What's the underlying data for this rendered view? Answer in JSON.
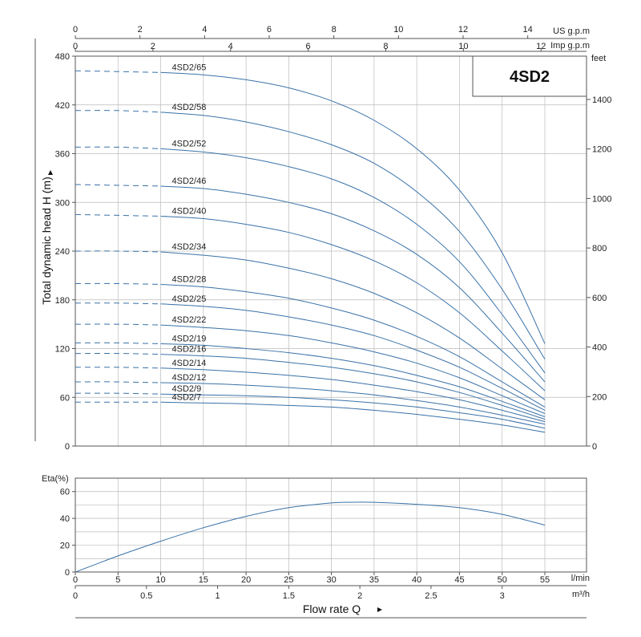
{
  "chart_data": [
    {
      "type": "line",
      "title": "4SD2",
      "ylabel": "Total dynamic head H (m)",
      "ylim": [
        0,
        480
      ],
      "y_ticks": [
        0,
        60,
        120,
        180,
        240,
        300,
        360,
        420,
        480
      ],
      "xlim": [
        0,
        55
      ],
      "secondary_y": {
        "unit": "feet",
        "ticks": [
          0,
          200,
          400,
          600,
          800,
          1000,
          1200,
          1400
        ]
      },
      "top_axis_us": {
        "unit": "US g.p.m",
        "ticks": [
          0,
          2,
          4,
          6,
          8,
          10,
          12,
          14
        ]
      },
      "top_axis_imp": {
        "unit": "Imp g.p.m",
        "ticks": [
          0,
          2,
          4,
          6,
          8,
          10,
          12
        ]
      },
      "grid": true,
      "series": [
        {
          "name": "4SD2/65",
          "dashed_until": 10,
          "points": [
            [
              0,
              462
            ],
            [
              5,
              461
            ],
            [
              10,
              460
            ],
            [
              15,
              457
            ],
            [
              20,
              451
            ],
            [
              25,
              441
            ],
            [
              30,
              425
            ],
            [
              35,
              401
            ],
            [
              40,
              366
            ],
            [
              45,
              315
            ],
            [
              50,
              238
            ],
            [
              55,
              126
            ]
          ]
        },
        {
          "name": "4SD2/58",
          "dashed_until": 10,
          "points": [
            [
              0,
              413
            ],
            [
              5,
              413
            ],
            [
              10,
              411
            ],
            [
              15,
              407
            ],
            [
              20,
              399
            ],
            [
              25,
              387
            ],
            [
              30,
              371
            ],
            [
              35,
              348
            ],
            [
              40,
              313
            ],
            [
              45,
              264
            ],
            [
              50,
              193
            ],
            [
              55,
              107
            ]
          ]
        },
        {
          "name": "4SD2/52",
          "dashed_until": 10,
          "points": [
            [
              0,
              368
            ],
            [
              5,
              368
            ],
            [
              10,
              366
            ],
            [
              15,
              362
            ],
            [
              20,
              355
            ],
            [
              25,
              344
            ],
            [
              30,
              329
            ],
            [
              35,
              306
            ],
            [
              40,
              273
            ],
            [
              45,
              227
            ],
            [
              50,
              162
            ],
            [
              55,
              90
            ]
          ]
        },
        {
          "name": "4SD2/46",
          "dashed_until": 10,
          "points": [
            [
              0,
              322
            ],
            [
              5,
              321
            ],
            [
              10,
              320
            ],
            [
              15,
              317
            ],
            [
              20,
              310
            ],
            [
              25,
              300
            ],
            [
              30,
              286
            ],
            [
              35,
              265
            ],
            [
              40,
              236
            ],
            [
              45,
              195
            ],
            [
              50,
              139
            ],
            [
              55,
              79
            ]
          ]
        },
        {
          "name": "4SD2/40",
          "dashed_until": 10,
          "points": [
            [
              0,
              285
            ],
            [
              5,
              284
            ],
            [
              10,
              283
            ],
            [
              15,
              280
            ],
            [
              20,
              273
            ],
            [
              25,
              263
            ],
            [
              30,
              248
            ],
            [
              35,
              228
            ],
            [
              40,
              201
            ],
            [
              45,
              164
            ],
            [
              50,
              117
            ],
            [
              55,
              68
            ]
          ]
        },
        {
          "name": "4SD2/34",
          "dashed_until": 10,
          "points": [
            [
              0,
              240
            ],
            [
              5,
              240
            ],
            [
              10,
              239
            ],
            [
              15,
              235
            ],
            [
              20,
              229
            ],
            [
              25,
              219
            ],
            [
              30,
              206
            ],
            [
              35,
              188
            ],
            [
              40,
              164
            ],
            [
              45,
              133
            ],
            [
              50,
              95
            ],
            [
              55,
              57
            ]
          ]
        },
        {
          "name": "4SD2/28",
          "dashed_until": 10,
          "points": [
            [
              0,
              200
            ],
            [
              5,
              200
            ],
            [
              10,
              199
            ],
            [
              15,
              196
            ],
            [
              20,
              190
            ],
            [
              25,
              182
            ],
            [
              30,
              170
            ],
            [
              35,
              155
            ],
            [
              40,
              135
            ],
            [
              45,
              110
            ],
            [
              50,
              79
            ],
            [
              55,
              48
            ]
          ]
        },
        {
          "name": "4SD2/25",
          "dashed_until": 10,
          "points": [
            [
              0,
              176
            ],
            [
              5,
              176
            ],
            [
              10,
              175
            ],
            [
              15,
              172
            ],
            [
              20,
              167
            ],
            [
              25,
              159
            ],
            [
              30,
              149
            ],
            [
              35,
              136
            ],
            [
              40,
              118
            ],
            [
              45,
              97
            ],
            [
              50,
              71
            ],
            [
              55,
              44
            ]
          ]
        },
        {
          "name": "4SD2/22",
          "dashed_until": 10,
          "points": [
            [
              0,
              150
            ],
            [
              5,
              150
            ],
            [
              10,
              149
            ],
            [
              15,
              146
            ],
            [
              20,
              142
            ],
            [
              25,
              136
            ],
            [
              30,
              127
            ],
            [
              35,
              116
            ],
            [
              40,
              102
            ],
            [
              45,
              84
            ],
            [
              50,
              62
            ],
            [
              55,
              40
            ]
          ]
        },
        {
          "name": "4SD2/19",
          "dashed_until": 10,
          "points": [
            [
              0,
              127
            ],
            [
              5,
              127
            ],
            [
              10,
              126
            ],
            [
              15,
              124
            ],
            [
              20,
              120
            ],
            [
              25,
              115
            ],
            [
              30,
              108
            ],
            [
              35,
              99
            ],
            [
              40,
              87
            ],
            [
              45,
              73
            ],
            [
              50,
              55
            ],
            [
              55,
              36
            ]
          ]
        },
        {
          "name": "4SD2/16",
          "dashed_until": 10,
          "points": [
            [
              0,
              114
            ],
            [
              5,
              114
            ],
            [
              10,
              113
            ],
            [
              15,
              111
            ],
            [
              20,
              108
            ],
            [
              25,
              103
            ],
            [
              30,
              97
            ],
            [
              35,
              89
            ],
            [
              40,
              79
            ],
            [
              45,
              66
            ],
            [
              50,
              50
            ],
            [
              55,
              33
            ]
          ]
        },
        {
          "name": "4SD2/14",
          "dashed_until": 10,
          "points": [
            [
              0,
              97
            ],
            [
              5,
              97
            ],
            [
              10,
              96
            ],
            [
              15,
              94
            ],
            [
              20,
              91
            ],
            [
              25,
              87
            ],
            [
              30,
              82
            ],
            [
              35,
              75
            ],
            [
              40,
              67
            ],
            [
              45,
              57
            ],
            [
              50,
              44
            ],
            [
              55,
              30
            ]
          ]
        },
        {
          "name": "4SD2/12",
          "dashed_until": 10,
          "points": [
            [
              0,
              79
            ],
            [
              5,
              79
            ],
            [
              10,
              78
            ],
            [
              15,
              77
            ],
            [
              20,
              75
            ],
            [
              25,
              72
            ],
            [
              30,
              68
            ],
            [
              35,
              63
            ],
            [
              40,
              56
            ],
            [
              45,
              48
            ],
            [
              50,
              38
            ],
            [
              55,
              27
            ]
          ]
        },
        {
          "name": "4SD2/9",
          "dashed_until": 10,
          "points": [
            [
              0,
              65
            ],
            [
              5,
              65
            ],
            [
              10,
              64
            ],
            [
              15,
              63
            ],
            [
              20,
              62
            ],
            [
              25,
              60
            ],
            [
              30,
              57
            ],
            [
              35,
              53
            ],
            [
              40,
              48
            ],
            [
              45,
              41
            ],
            [
              50,
              33
            ],
            [
              55,
              22
            ]
          ]
        },
        {
          "name": "4SD2/7",
          "dashed_until": 10,
          "points": [
            [
              0,
              54
            ],
            [
              5,
              54
            ],
            [
              10,
              54
            ],
            [
              15,
              53
            ],
            [
              20,
              52
            ],
            [
              25,
              50
            ],
            [
              30,
              48
            ],
            [
              35,
              44
            ],
            [
              40,
              39
            ],
            [
              45,
              33
            ],
            [
              50,
              26
            ],
            [
              55,
              17
            ]
          ]
        }
      ]
    },
    {
      "type": "line",
      "ylabel": "Eta(%)",
      "ylim": [
        0,
        70
      ],
      "y_ticks": [
        0,
        20,
        40,
        60
      ],
      "xlabel": "Flow rate Q",
      "x_ticks": [
        0,
        5,
        10,
        15,
        20,
        25,
        30,
        35,
        40,
        45,
        50,
        55
      ],
      "x_unit": "l/min",
      "secondary_x": {
        "unit": "m³/h",
        "ticks": [
          "0",
          "0.5",
          "1",
          "1.5",
          "2",
          "2.5",
          "3"
        ]
      },
      "grid": true,
      "series": [
        {
          "points": [
            [
              0,
              0
            ],
            [
              5,
              12
            ],
            [
              10,
              23
            ],
            [
              15,
              33
            ],
            [
              20,
              41.5
            ],
            [
              25,
              48
            ],
            [
              30,
              51.5
            ],
            [
              32,
              52
            ],
            [
              35,
              52
            ],
            [
              40,
              50.5
            ],
            [
              45,
              48
            ],
            [
              50,
              43
            ],
            [
              55,
              35
            ]
          ]
        }
      ]
    }
  ],
  "colors": {
    "curve": "#3a72a8",
    "grid": "#bbbbbb",
    "axis": "#555555",
    "text": "#222222"
  }
}
